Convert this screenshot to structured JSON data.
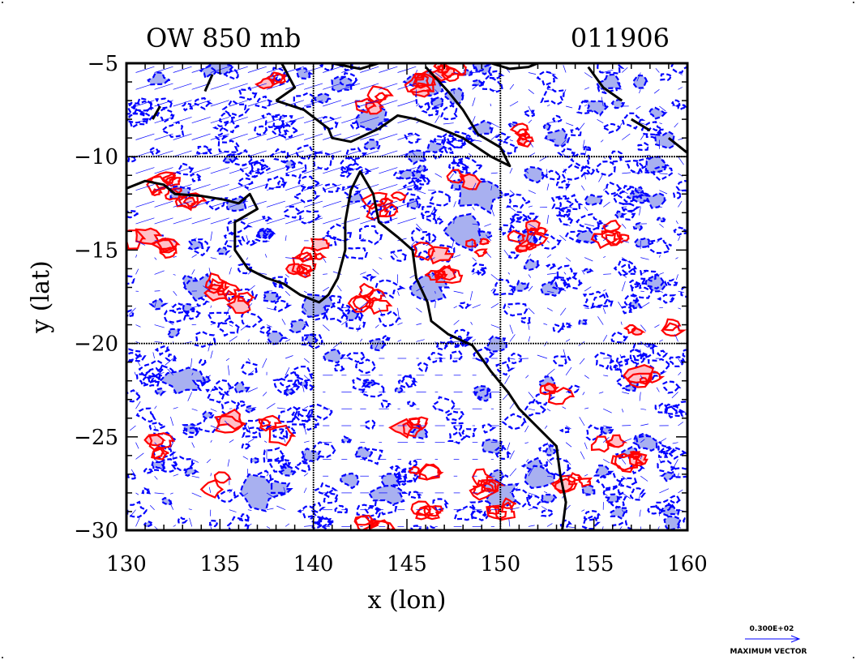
{
  "chart_data": {
    "type": "heatmap",
    "title": "OW 850 mb",
    "date_label": "011906",
    "xlabel": "x (lon)",
    "ylabel": "y (lat)",
    "xlim": [
      130,
      160
    ],
    "ylim": [
      -30,
      -5
    ],
    "x_ticks": [
      "130",
      "135",
      "140",
      "145",
      "150",
      "155",
      "160"
    ],
    "y_ticks": [
      "-5",
      "-10",
      "-15",
      "-20",
      "-25",
      "-30"
    ],
    "gridlines_x": [
      140,
      150
    ],
    "gridlines_y": [
      -10,
      -20
    ],
    "colors": {
      "positive": "#ff0000",
      "positive_fill": "#ffc0c8",
      "negative": "#0000ff",
      "negative_fill": "#a8b0f0",
      "coast": "#000000",
      "vector": "#0000ff"
    },
    "coastline": [
      [
        [
          130.0,
          -11.7
        ],
        [
          131.0,
          -11.3
        ],
        [
          132.0,
          -11.5
        ],
        [
          132.6,
          -12.0
        ],
        [
          134.0,
          -12.1
        ],
        [
          135.2,
          -12.3
        ],
        [
          136.0,
          -12.5
        ],
        [
          136.6,
          -12.0
        ],
        [
          137.0,
          -12.8
        ],
        [
          135.8,
          -13.5
        ],
        [
          135.8,
          -15.0
        ],
        [
          136.5,
          -16.0
        ],
        [
          137.5,
          -16.5
        ],
        [
          138.4,
          -16.8
        ],
        [
          139.3,
          -17.4
        ],
        [
          140.3,
          -17.8
        ],
        [
          140.8,
          -17.4
        ],
        [
          141.3,
          -16.5
        ],
        [
          141.7,
          -15.0
        ],
        [
          141.7,
          -13.5
        ],
        [
          142.0,
          -11.8
        ],
        [
          142.5,
          -10.8
        ],
        [
          143.2,
          -12.0
        ],
        [
          143.5,
          -13.5
        ],
        [
          144.5,
          -14.3
        ],
        [
          145.3,
          -15.0
        ],
        [
          145.5,
          -16.5
        ],
        [
          146.1,
          -17.8
        ],
        [
          146.3,
          -18.8
        ],
        [
          147.2,
          -19.5
        ],
        [
          148.5,
          -20.1
        ],
        [
          149.5,
          -21.5
        ],
        [
          150.4,
          -22.6
        ],
        [
          151.0,
          -23.5
        ],
        [
          152.0,
          -24.5
        ],
        [
          153.0,
          -25.5
        ],
        [
          153.2,
          -27.0
        ],
        [
          153.5,
          -28.5
        ],
        [
          153.3,
          -30.0
        ]
      ],
      [
        [
          138.0,
          -7.0
        ],
        [
          139.5,
          -7.5
        ],
        [
          140.8,
          -8.5
        ],
        [
          141.0,
          -9.0
        ],
        [
          142.0,
          -9.2
        ],
        [
          143.5,
          -8.5
        ],
        [
          144.5,
          -7.8
        ],
        [
          145.5,
          -8.0
        ],
        [
          146.8,
          -8.5
        ],
        [
          148.0,
          -9.0
        ],
        [
          149.5,
          -10.0
        ],
        [
          150.5,
          -10.5
        ],
        [
          150.0,
          -9.5
        ],
        [
          148.8,
          -8.8
        ],
        [
          148.0,
          -7.5
        ],
        [
          147.2,
          -6.5
        ],
        [
          146.0,
          -5.2
        ]
      ],
      [
        [
          138.3,
          -5.0
        ],
        [
          139.0,
          -6.3
        ],
        [
          138.0,
          -7.0
        ]
      ],
      [
        [
          141.0,
          -5.0
        ],
        [
          142.5,
          -5.3
        ],
        [
          143.5,
          -5.0
        ]
      ],
      [
        [
          149.5,
          -5.0
        ],
        [
          150.5,
          -5.3
        ],
        [
          151.5,
          -5.2
        ],
        [
          152.0,
          -5.0
        ]
      ],
      [
        [
          154.7,
          -5.2
        ],
        [
          155.5,
          -6.3
        ],
        [
          156.5,
          -7.0
        ]
      ],
      [
        [
          157.0,
          -8.0
        ],
        [
          158.0,
          -8.6
        ]
      ],
      [
        [
          159.0,
          -9.0
        ],
        [
          160.0,
          -9.8
        ]
      ],
      [
        [
          134.6,
          -5.6
        ],
        [
          134.2,
          -6.5
        ]
      ],
      [
        [
          131.8,
          -7.3
        ],
        [
          131.4,
          -8.0
        ]
      ]
    ]
  },
  "legend": {
    "value": "0.300E+02",
    "label": "MAXIMUM VECTOR"
  }
}
